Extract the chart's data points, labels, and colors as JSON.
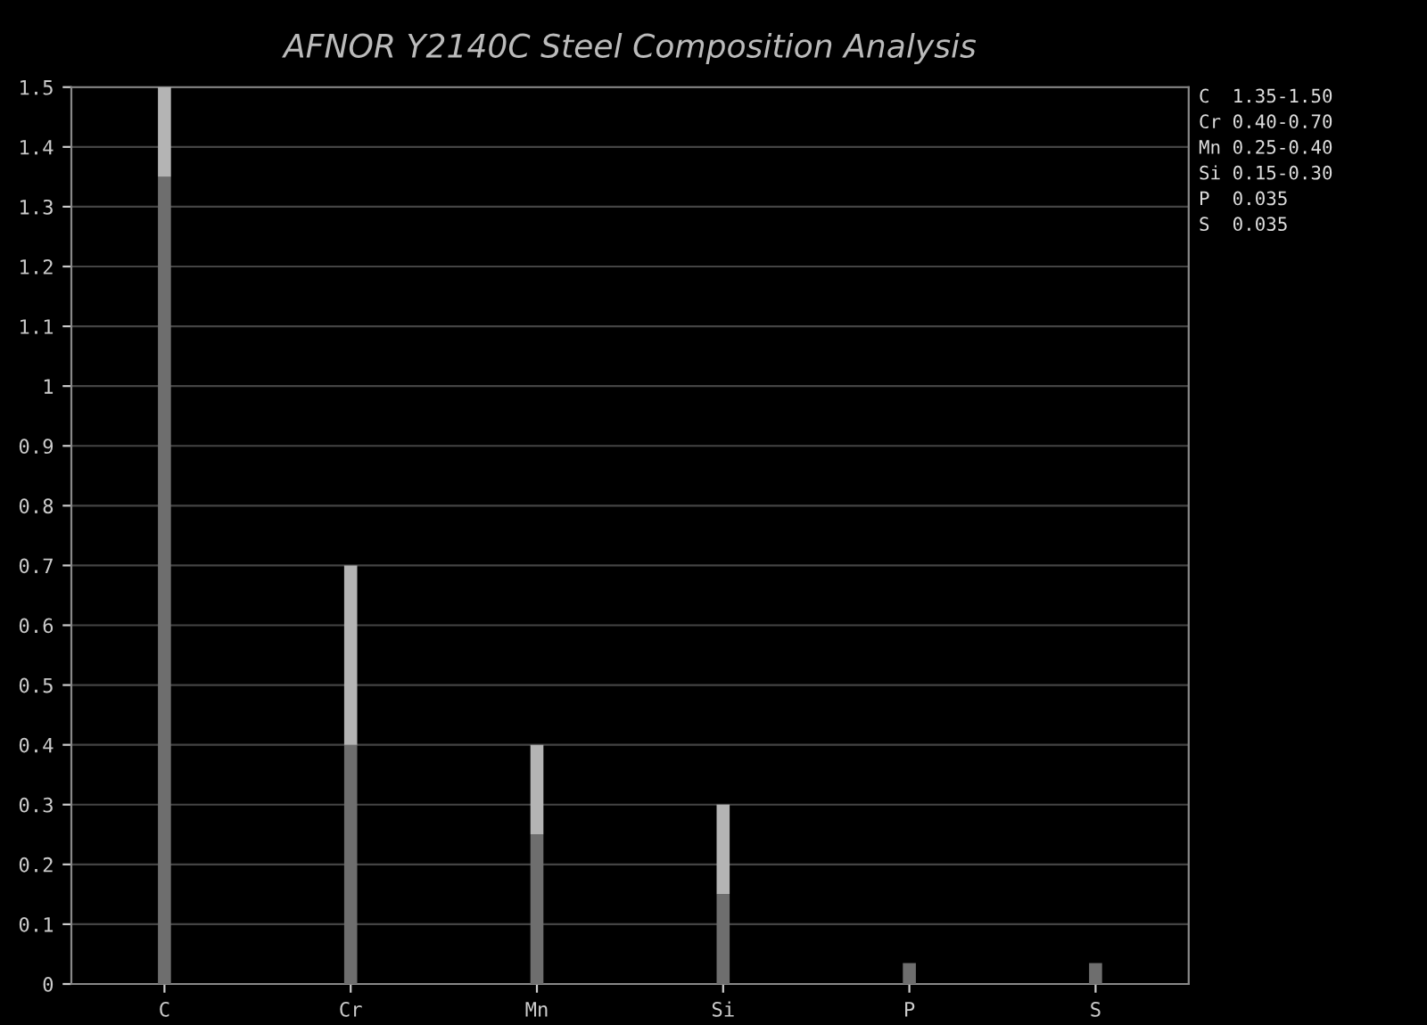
{
  "chart_data": {
    "type": "bar",
    "title": "AFNOR Y2140C Steel Composition Analysis",
    "categories": [
      "C",
      "Cr",
      "Mn",
      "Si",
      "P",
      "S"
    ],
    "stacked": true,
    "series": [
      {
        "color": "#6e6e6e",
        "values": [
          1.35,
          0.4,
          0.25,
          0.15,
          0.035,
          0.035
        ]
      },
      {
        "color": "#b4b4b4",
        "values": [
          0.15,
          0.3,
          0.15,
          0.15,
          0,
          0
        ]
      }
    ],
    "ylim": [
      0,
      1.5
    ],
    "yticks": [
      0,
      0.1,
      0.2,
      0.3,
      0.4,
      0.5,
      0.6,
      0.7,
      0.8,
      0.9,
      1,
      1.1,
      1.2,
      1.3,
      1.4,
      1.5
    ],
    "grid": "y",
    "annotations": [
      "C  1.35-1.50",
      "Cr 0.40-0.70",
      "Mn 0.25-0.40",
      "Si 0.15-0.30",
      "P  0.035",
      "S  0.035"
    ]
  }
}
